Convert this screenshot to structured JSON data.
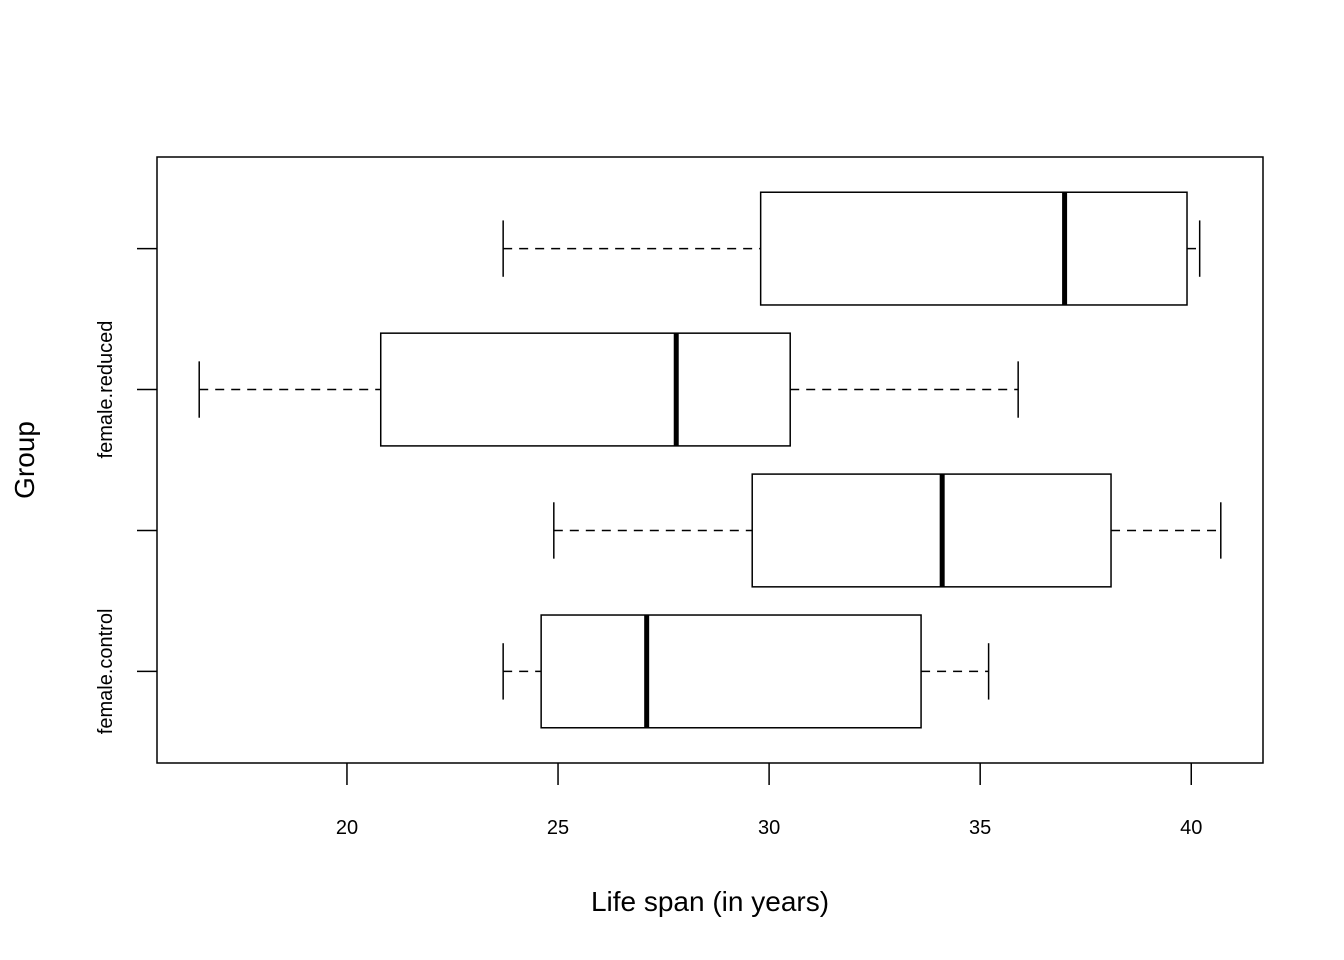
{
  "chart_data": {
    "type": "boxplot",
    "orientation": "horizontal",
    "title": "",
    "xlabel": "Life span (in years)",
    "ylabel": "Group",
    "xlim": [
      15.5,
      41.7
    ],
    "xticks": [
      20,
      25,
      30,
      35,
      40
    ],
    "xtick_labels": [
      "20",
      "25",
      "30",
      "35",
      "40"
    ],
    "categories": [
      "female.control",
      "",
      "female.reduced",
      ""
    ],
    "boxes": [
      {
        "label": "female.control",
        "whisker_low": 23.7,
        "q1": 24.6,
        "median": 27.1,
        "q3": 33.6,
        "whisker_high": 35.2
      },
      {
        "label": "",
        "whisker_low": 24.9,
        "q1": 29.6,
        "median": 34.1,
        "q3": 38.1,
        "whisker_high": 40.7
      },
      {
        "label": "female.reduced",
        "whisker_low": 16.5,
        "q1": 20.8,
        "median": 27.8,
        "q3": 30.5,
        "whisker_high": 35.9
      },
      {
        "label": "",
        "whisker_low": 23.7,
        "q1": 29.8,
        "median": 37.0,
        "q3": 39.9,
        "whisker_high": 40.2
      }
    ],
    "grid": false,
    "legend": "none"
  }
}
